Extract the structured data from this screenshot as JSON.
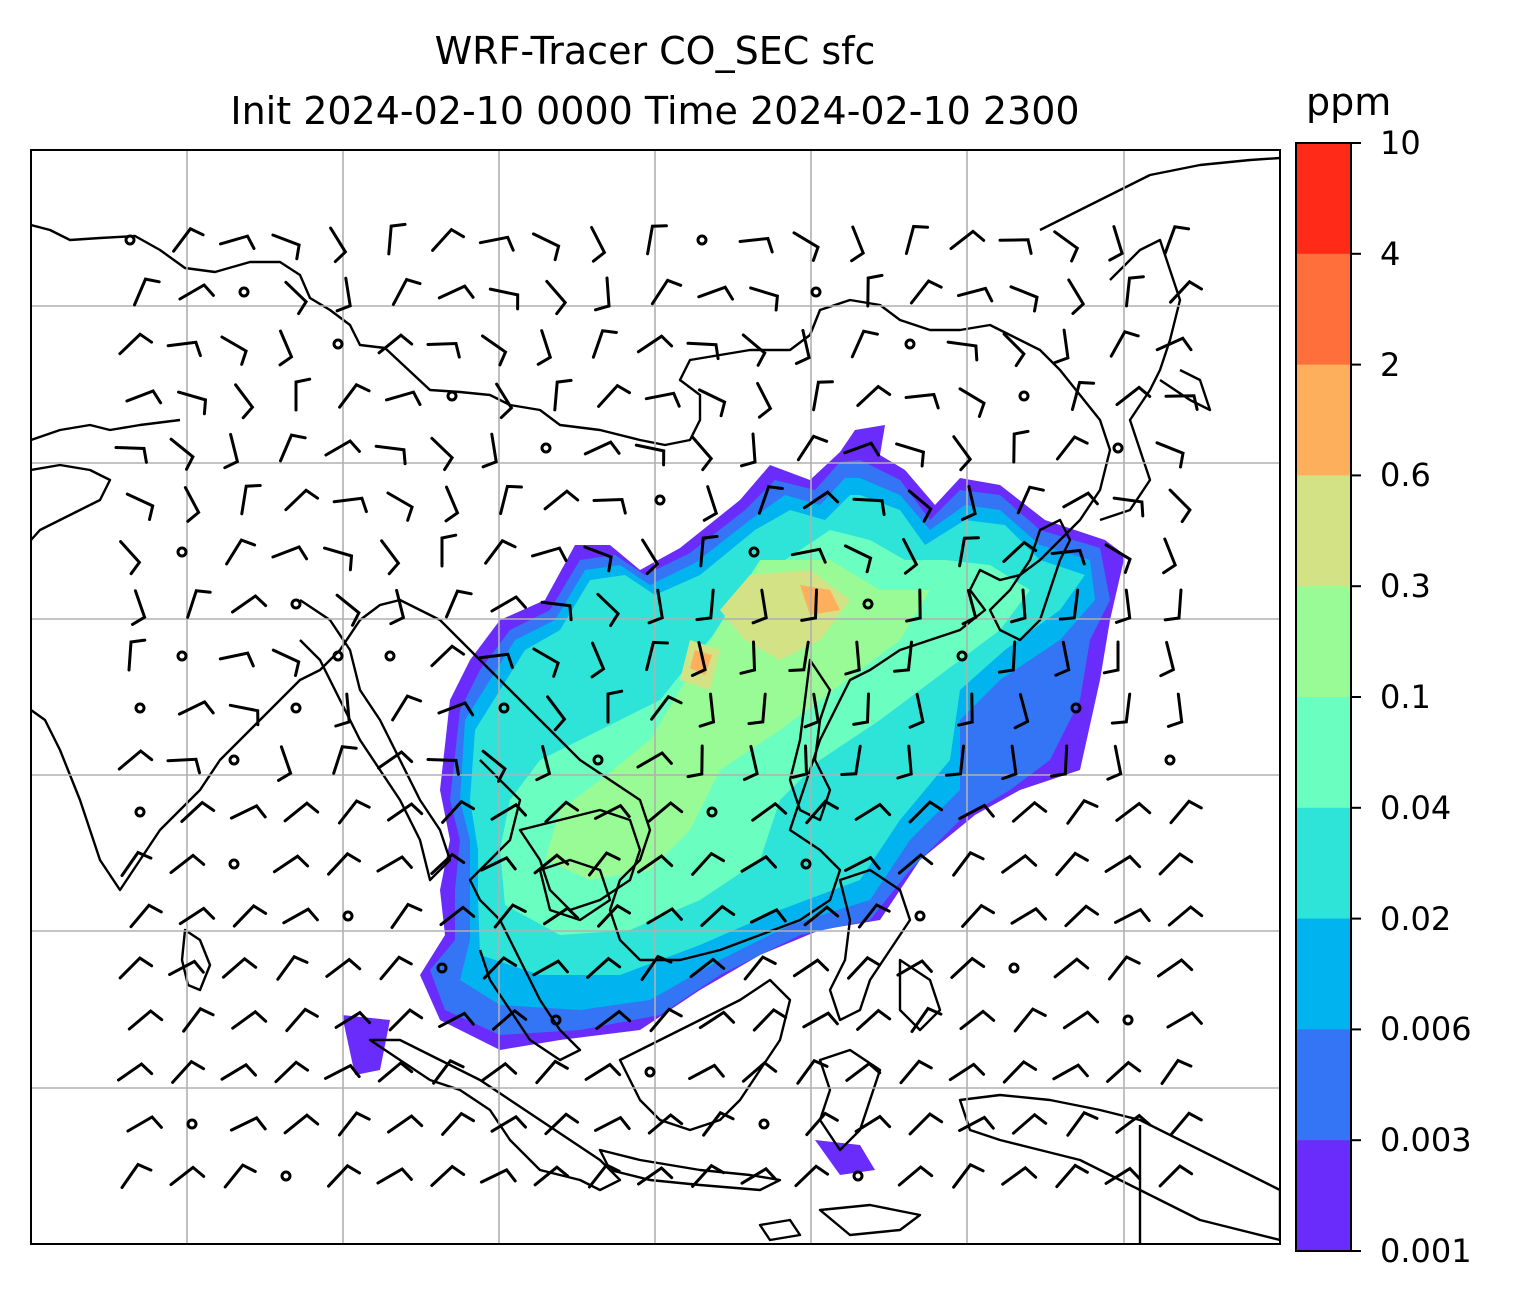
{
  "title": {
    "line1": "WRF-Tracer CO_SEC sfc",
    "line2": "Init 2024-02-10 0000 Time 2024-02-10 2300"
  },
  "colorbar": {
    "unit": "ppm",
    "ticks": [
      "10",
      "4",
      "2",
      "0.6",
      "0.3",
      "0.1",
      "0.04",
      "0.02",
      "0.006",
      "0.003",
      "0.001"
    ],
    "colors": [
      "#ff2a17",
      "#ff6f3c",
      "#feaf5c",
      "#d2e285",
      "#99fb96",
      "#6afec0",
      "#2ee3d8",
      "#01b3ee",
      "#3475f5",
      "#6a2cfa"
    ]
  },
  "map": {
    "field": "CO_SEC surface tracer concentration",
    "gridlines": true,
    "wind_barbs": true,
    "coastlines": true
  }
}
